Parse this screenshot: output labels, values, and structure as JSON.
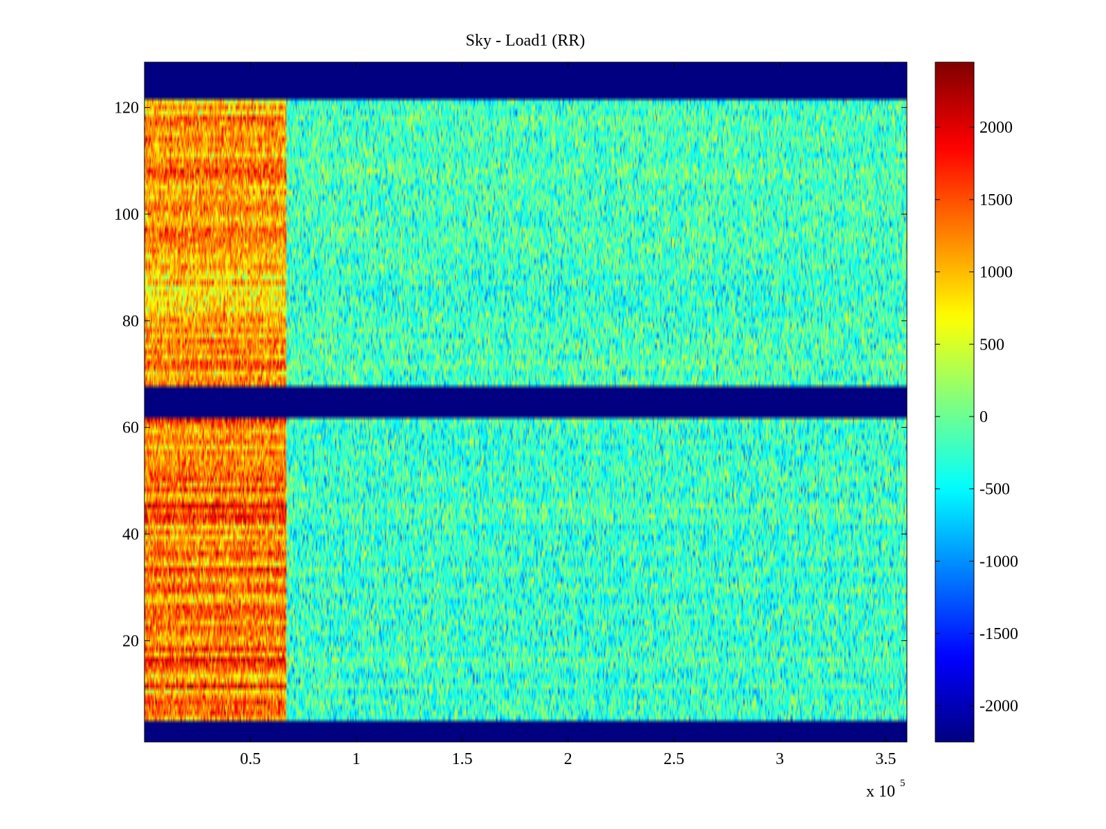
{
  "chart_data": {
    "type": "heatmap",
    "title": "Sky - Load1 (RR)",
    "xlabel": "",
    "ylabel": "",
    "x_multiplier_label": "x 10",
    "x_multiplier_exponent": "5",
    "xlim": [
      0,
      3.6
    ],
    "ylim": [
      1,
      128.5
    ],
    "x_ticks": [
      0.5,
      1,
      1.5,
      2,
      2.5,
      3,
      3.5
    ],
    "x_tick_labels": [
      "0.5",
      "1",
      "1.5",
      "2",
      "2.5",
      "3",
      "3.5"
    ],
    "y_ticks": [
      20,
      40,
      60,
      80,
      100,
      120
    ],
    "y_tick_labels": [
      "20",
      "40",
      "60",
      "80",
      "100",
      "120"
    ],
    "colormap": "jet",
    "clim": [
      -2250,
      2450
    ],
    "colorbar": {
      "ticks": [
        2000,
        1500,
        1000,
        500,
        0,
        -500,
        -1000,
        -1500,
        -2000
      ],
      "tick_labels": [
        "2000",
        "1500",
        "1000",
        "500",
        "0",
        "-500",
        "-1000",
        "-1500",
        "-2000"
      ]
    },
    "masked_value": -2250,
    "masked_rows": [
      [
        1,
        4
      ],
      [
        62,
        67
      ],
      [
        122,
        128
      ]
    ],
    "regions": [
      {
        "x_range": [
          0,
          0.67
        ],
        "rows": [
          5,
          61
        ],
        "mean_value": 1300
      },
      {
        "x_range": [
          0.67,
          3.6
        ],
        "rows": [
          5,
          61
        ],
        "mean_value": -250
      },
      {
        "x_range": [
          0,
          0.67
        ],
        "rows": [
          68,
          121
        ],
        "mean_value": 1100
      },
      {
        "x_range": [
          0.67,
          3.6
        ],
        "rows": [
          68,
          121
        ],
        "mean_value": -200
      }
    ],
    "grid": false
  }
}
